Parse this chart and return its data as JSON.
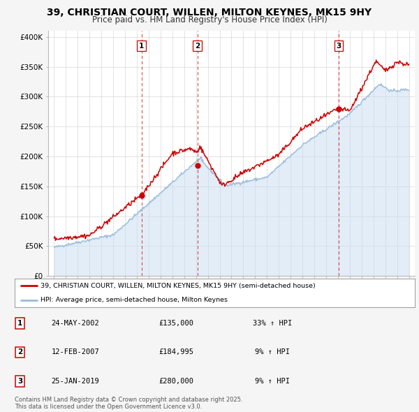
{
  "title": "39, CHRISTIAN COURT, WILLEN, MILTON KEYNES, MK15 9HY",
  "subtitle": "Price paid vs. HM Land Registry's House Price Index (HPI)",
  "title_fontsize": 10,
  "subtitle_fontsize": 8.5,
  "background_color": "#f5f5f5",
  "plot_bg_color": "#ffffff",
  "red_color": "#cc0000",
  "blue_color": "#99bbdd",
  "blue_fill": "#c8ddf0",
  "sale_markers": [
    {
      "date": 2002.39,
      "price": 135000,
      "label": "1"
    },
    {
      "date": 2007.12,
      "price": 184995,
      "label": "2"
    },
    {
      "date": 2019.07,
      "price": 280000,
      "label": "3"
    }
  ],
  "vline_dates": [
    2002.39,
    2007.12,
    2019.07
  ],
  "table_rows": [
    [
      "1",
      "24-MAY-2002",
      "£135,000",
      "33% ↑ HPI"
    ],
    [
      "2",
      "12-FEB-2007",
      "£184,995",
      "9% ↑ HPI"
    ],
    [
      "3",
      "25-JAN-2019",
      "£280,000",
      "9% ↑ HPI"
    ]
  ],
  "legend_line1": "39, CHRISTIAN COURT, WILLEN, MILTON KEYNES, MK15 9HY (semi-detached house)",
  "legend_line2": "HPI: Average price, semi-detached house, Milton Keynes",
  "footer": "Contains HM Land Registry data © Crown copyright and database right 2025.\nThis data is licensed under the Open Government Licence v3.0.",
  "ylim": [
    0,
    410000
  ],
  "yticks": [
    0,
    50000,
    100000,
    150000,
    200000,
    250000,
    300000,
    350000,
    400000
  ],
  "ytick_labels": [
    "£0",
    "£50K",
    "£100K",
    "£150K",
    "£200K",
    "£250K",
    "£300K",
    "£350K",
    "£400K"
  ],
  "xlim": [
    1994.5,
    2025.5
  ]
}
